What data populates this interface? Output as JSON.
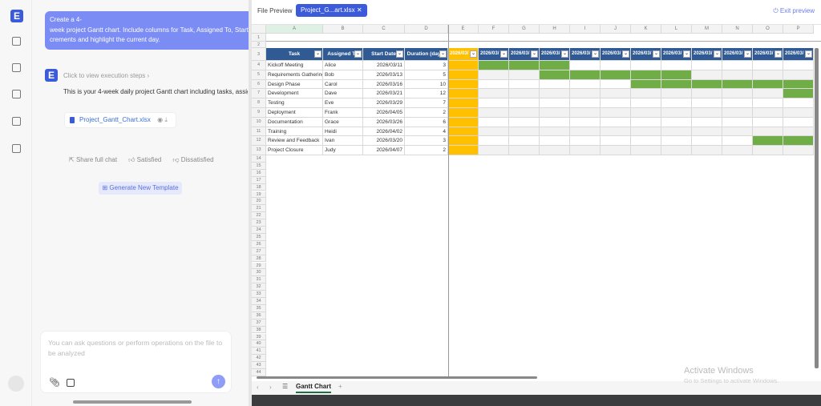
{
  "rail": {
    "logo": "E",
    "icons": [
      "panel-toggle-icon",
      "new-chat-icon",
      "image-edit-icon",
      "layout-icon",
      "template-icon"
    ]
  },
  "chat": {
    "user_message": [
      "Create a 4-",
      "week project Gantt chart. Include columns for Task, Assigned To, Start Date, ",
      "crements and highlight the current day."
    ],
    "steps_label": "Click to view execution steps",
    "reply": "This is your 4-week daily project Gantt chart including tasks, assignme",
    "file_name": "Project_Gantt_Chart.xlsx",
    "share": "Share full chat",
    "satisfied": "Satisfied",
    "dissatisfied": "Dissatisfied",
    "generate": "Generate New Template",
    "input_placeholder": "You can ask questions or perform operations on the file to be analyzed"
  },
  "preview": {
    "title": "File Preview",
    "tab": "Project_G...art.xlsx",
    "exit": "Exit preview",
    "sheet_tab": "Gantt Chart"
  },
  "sheet": {
    "columns": [
      "A",
      "B",
      "C",
      "D",
      "E",
      "F",
      "G",
      "H",
      "I",
      "J",
      "K",
      "L",
      "M",
      "N",
      "O",
      "P"
    ],
    "headers": [
      "Task",
      "Assigned To",
      "Start Date",
      "Duration (days)"
    ],
    "date_header": "2026/03/",
    "highlight_color": "#ffc000",
    "bar_color": "#70ad47",
    "header_color": "#2f5a93",
    "rows": [
      {
        "task": "Kickoff Meeting",
        "assigned": "Alice",
        "start": "2026/03/11",
        "duration": 3,
        "bar": [
          0,
          2
        ]
      },
      {
        "task": "Requirements Gathering",
        "assigned": "Bob",
        "start": "2026/03/13",
        "duration": 5,
        "bar": [
          2,
          6
        ]
      },
      {
        "task": "Design Phase",
        "assigned": "Carol",
        "start": "2026/03/16",
        "duration": 10,
        "bar": [
          5,
          11
        ]
      },
      {
        "task": "Development",
        "assigned": "Dave",
        "start": "2026/03/21",
        "duration": 12,
        "bar": [
          10,
          11
        ]
      },
      {
        "task": "Testing",
        "assigned": "Eve",
        "start": "2026/03/29",
        "duration": 7,
        "bar": null
      },
      {
        "task": "Deployment",
        "assigned": "Frank",
        "start": "2026/04/05",
        "duration": 2,
        "bar": null
      },
      {
        "task": "Documentation",
        "assigned": "Grace",
        "start": "2026/03/26",
        "duration": 6,
        "bar": null
      },
      {
        "task": "Training",
        "assigned": "Heidi",
        "start": "2026/04/02",
        "duration": 4,
        "bar": null
      },
      {
        "task": "Review and Feedback",
        "assigned": "Ivan",
        "start": "2026/03/20",
        "duration": 3,
        "bar": [
          9,
          11
        ]
      },
      {
        "task": "Project Closure",
        "assigned": "Judy",
        "start": "2026/04/07",
        "duration": 2,
        "bar": null
      }
    ]
  },
  "watermark": {
    "title": "Activate Windows",
    "sub": "Go to Settings to activate Windows."
  }
}
